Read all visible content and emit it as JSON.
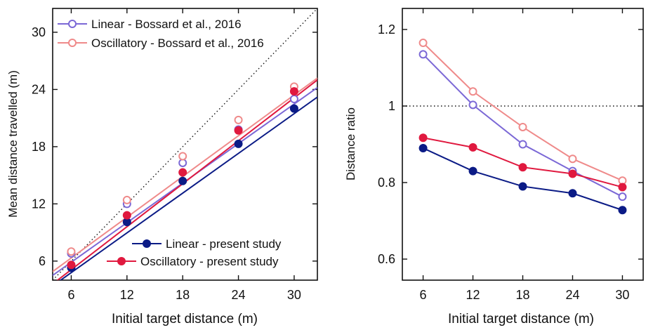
{
  "chart_data": [
    {
      "type": "line",
      "xlabel": "Initial target distance (m)",
      "ylabel": "Mean distance travelled (m)",
      "xlim": [
        4,
        32.5
      ],
      "ylim": [
        4,
        32.5
      ],
      "xticks": [
        6,
        12,
        18,
        24,
        30
      ],
      "yticks": [
        6,
        12,
        18,
        24,
        30
      ],
      "reference_line": "identity (y = x), dotted",
      "legend_top": "top-left",
      "legend_bottom": "bottom-right",
      "x": [
        6,
        12,
        18,
        24,
        30
      ],
      "series": [
        {
          "name": "Linear - Bossard et al., 2016",
          "marker": "open",
          "color": "#7b68d6",
          "values": [
            6.8,
            12.0,
            16.3,
            19.8,
            23.0
          ],
          "fit": [
            [
              4,
              4.5
            ],
            [
              32.5,
              24.2
            ]
          ]
        },
        {
          "name": "Oscillatory - Bossard et al., 2016",
          "marker": "open",
          "color": "#ef8a8a",
          "values": [
            7.0,
            12.4,
            17.0,
            20.8,
            24.3
          ],
          "fit": [
            [
              4,
              4.9
            ],
            [
              32.5,
              25.2
            ]
          ]
        },
        {
          "name": "Linear - present study",
          "marker": "filled",
          "color": "#0b1b86",
          "values": [
            5.3,
            10.1,
            14.4,
            18.3,
            22.0
          ],
          "fit": [
            [
              4,
              3.4
            ],
            [
              32.5,
              23.2
            ]
          ]
        },
        {
          "name": "Oscillatory - present study",
          "marker": "filled",
          "color": "#e0193f",
          "values": [
            5.6,
            10.8,
            15.3,
            19.7,
            23.8
          ],
          "fit": [
            [
              4,
              3.6
            ],
            [
              32.5,
              25.0
            ]
          ]
        }
      ]
    },
    {
      "type": "line",
      "xlabel": "Initial target distance (m)",
      "ylabel": "Distance ratio",
      "xlim": [
        3.5,
        32.5
      ],
      "ylim": [
        0.545,
        1.255
      ],
      "xticks": [
        6,
        12,
        18,
        24,
        30
      ],
      "yticks": [
        0.6,
        0.8,
        1,
        1.2
      ],
      "ytick_labels": [
        "0.6",
        "0.8",
        "1",
        "1.2"
      ],
      "reference_line": "y = 1, dotted",
      "x": [
        6,
        12,
        18,
        24,
        30
      ],
      "series": [
        {
          "name": "Linear - Bossard et al., 2016",
          "marker": "open",
          "color": "#7b68d6",
          "values": [
            1.135,
            1.003,
            0.9,
            0.83,
            0.763
          ]
        },
        {
          "name": "Oscillatory - Bossard et al., 2016",
          "marker": "open",
          "color": "#ef8a8a",
          "values": [
            1.165,
            1.038,
            0.945,
            0.862,
            0.805
          ]
        },
        {
          "name": "Linear - present study",
          "marker": "filled",
          "color": "#0b1b86",
          "values": [
            0.89,
            0.83,
            0.79,
            0.772,
            0.728
          ]
        },
        {
          "name": "Oscillatory - present study",
          "marker": "filled",
          "color": "#e0193f",
          "values": [
            0.917,
            0.892,
            0.84,
            0.823,
            0.788
          ]
        }
      ]
    }
  ]
}
